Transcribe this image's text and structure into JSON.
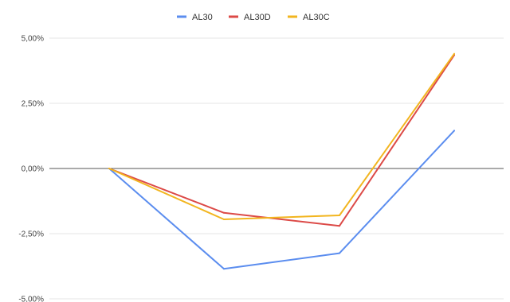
{
  "chart_data": {
    "type": "line",
    "title": "",
    "xlabel": "",
    "ylabel": "",
    "x": [
      1,
      2,
      3,
      4
    ],
    "ylim": [
      -5.0,
      5.0
    ],
    "yticks": [
      {
        "value": 5.0,
        "label": "5,00%"
      },
      {
        "value": 2.5,
        "label": "2,50%"
      },
      {
        "value": 0.0,
        "label": "0,00%"
      },
      {
        "value": -2.5,
        "label": "-2,50%"
      },
      {
        "value": -5.0,
        "label": "-5,00%"
      }
    ],
    "grid": true,
    "legend_position": "top",
    "series": [
      {
        "name": "AL30",
        "color": "#5b8def",
        "values": [
          0.0,
          -3.85,
          -3.25,
          1.45
        ]
      },
      {
        "name": "AL30D",
        "color": "#dc4a47",
        "values": [
          0.0,
          -1.7,
          -2.2,
          4.35
        ]
      },
      {
        "name": "AL30C",
        "color": "#f2b51f",
        "values": [
          0.0,
          -1.95,
          -1.8,
          4.4
        ]
      }
    ]
  }
}
